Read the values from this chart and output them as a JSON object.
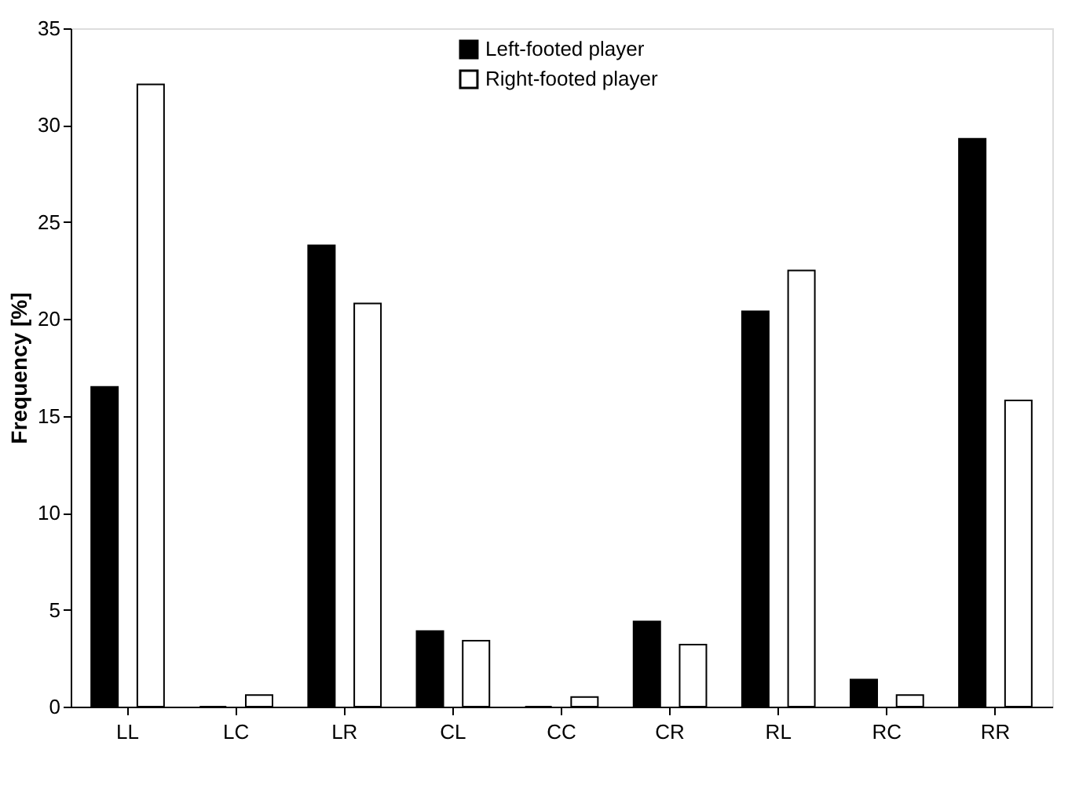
{
  "chart_data": {
    "type": "bar",
    "ylabel": "Frequency [%]",
    "categories": [
      "LL",
      "LC",
      "LR",
      "CL",
      "CC",
      "CR",
      "RL",
      "RC",
      "RR"
    ],
    "series": [
      {
        "name": "Left-footed player",
        "color": "#000000",
        "values": [
          16.5,
          0,
          23.8,
          3.9,
          0,
          4.4,
          20.4,
          1.4,
          29.3
        ]
      },
      {
        "name": "Right-footed player",
        "color": "#ffffff",
        "values": [
          32.1,
          0.6,
          20.8,
          3.4,
          0.5,
          3.2,
          22.5,
          0.6,
          15.8
        ]
      }
    ],
    "ylim": [
      0,
      35
    ],
    "yticks": [
      0,
      5,
      10,
      15,
      20,
      25,
      30,
      35
    ],
    "grid": false,
    "legend": "top right"
  }
}
